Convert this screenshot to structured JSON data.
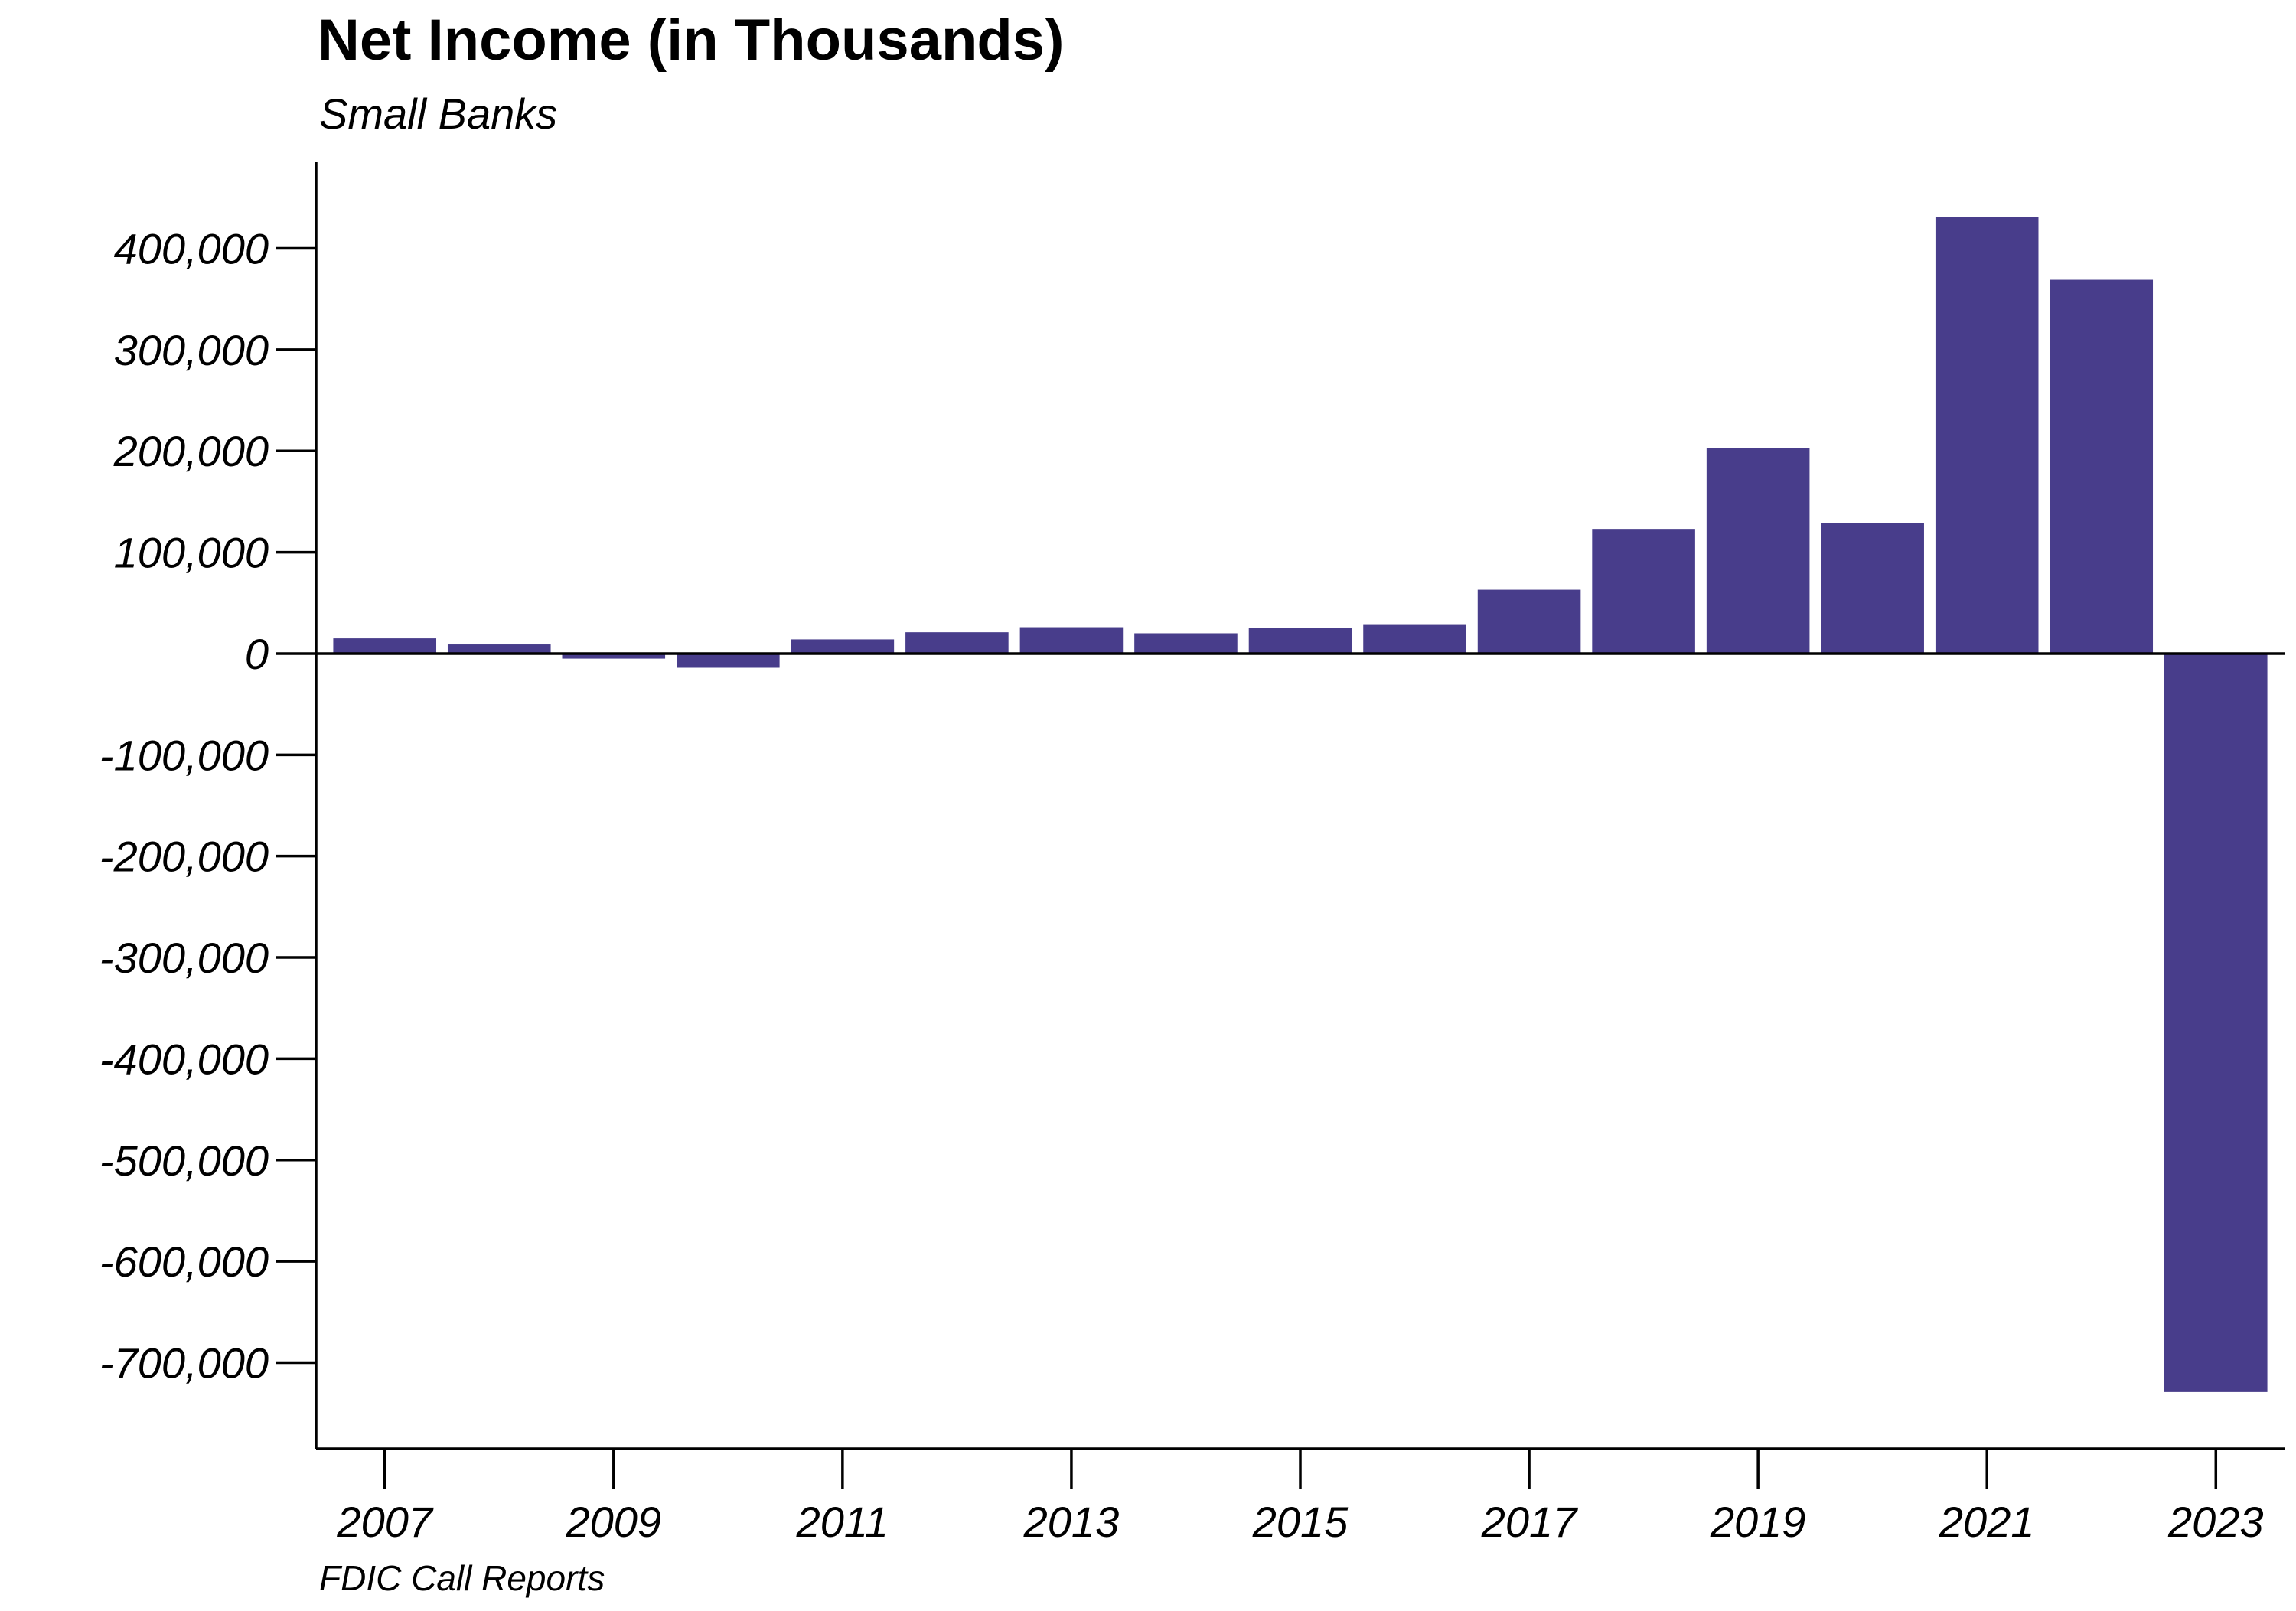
{
  "chart_data": {
    "type": "bar",
    "title": "Net Income (in Thousands)",
    "subtitle": "Small Banks",
    "source": "FDIC Call Reports",
    "xlabel": "",
    "ylabel": "",
    "categories": [
      2007,
      2008,
      2009,
      2010,
      2011,
      2012,
      2013,
      2014,
      2015,
      2016,
      2017,
      2018,
      2019,
      2020,
      2021,
      2022,
      2023
    ],
    "values": [
      15000,
      9000,
      -5000,
      -14000,
      14000,
      21000,
      26000,
      20000,
      25000,
      29000,
      63000,
      123000,
      203000,
      129000,
      431000,
      369000,
      -729000
    ],
    "x_ticks": [
      2007,
      2009,
      2011,
      2013,
      2015,
      2017,
      2019,
      2021,
      2023
    ],
    "x_tick_labels": [
      "2007",
      "2009",
      "2011",
      "2013",
      "2015",
      "2017",
      "2019",
      "2021",
      "2023"
    ],
    "y_ticks": [
      400000,
      300000,
      200000,
      100000,
      0,
      -100000,
      -200000,
      -300000,
      -400000,
      -500000,
      -600000,
      -700000
    ],
    "y_tick_labels": [
      "400,000",
      "300,000",
      "200,000",
      "100,000",
      "0",
      "-100,000",
      "-200,000",
      "-300,000",
      "-400,000",
      "-500,000",
      "-600,000",
      "-700,000"
    ],
    "ylim": [
      -785000,
      485000
    ],
    "xlim": [
      2006.4,
      2023.6
    ],
    "bar_color": "#483D8B",
    "grid": false,
    "legend": "none"
  }
}
